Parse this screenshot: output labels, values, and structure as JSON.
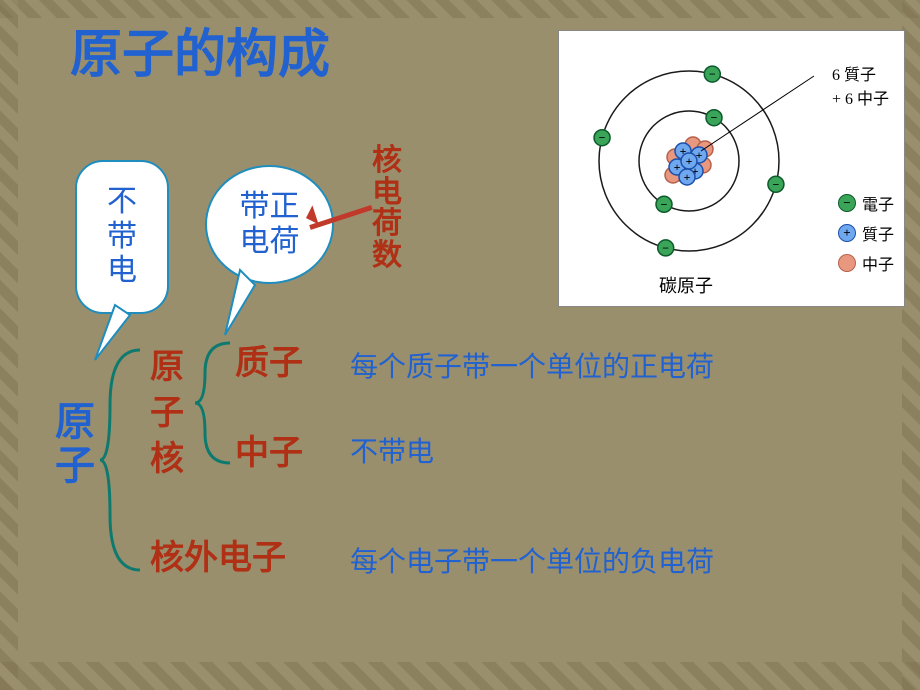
{
  "title": "原子的构成",
  "bubbles": {
    "neutral": "不\n带\n电",
    "positive": "带正\n电荷"
  },
  "nuclear_charge": "核电荷数",
  "tree": {
    "root": "原子",
    "nucleus": "原子核",
    "proton": "质子",
    "neutron": "中子",
    "electron": "核外电子"
  },
  "desc": {
    "proton": "每个质子带一个单位的正电荷",
    "neutron": "不带电",
    "electron": "每个电子带一个单位的负电荷"
  },
  "atom": {
    "caption": "碳原子",
    "top_label": "6 質子\n+ 6 中子",
    "legend": {
      "electron": "電子",
      "proton": "質子",
      "neutron": "中子"
    },
    "colors": {
      "electron_fill": "#3aa558",
      "electron_stroke": "#0c5a2c",
      "electron_sign": "−",
      "proton_fill": "#6fa8ef",
      "proton_stroke": "#1b4faa",
      "proton_sign": "+",
      "neutron_fill": "#e8987f",
      "neutron_stroke": "#b5604a",
      "orbit": "#1a1a1a"
    },
    "orbit_radii": [
      50,
      90
    ],
    "electrons_inner": 2,
    "electrons_outer": 4,
    "nucleus": {
      "protons": [
        [
          -6,
          -10
        ],
        [
          10,
          -6
        ],
        [
          -12,
          6
        ],
        [
          6,
          10
        ],
        [
          0,
          0
        ],
        [
          -2,
          16
        ]
      ],
      "neutrons": [
        [
          -14,
          -4
        ],
        [
          4,
          -16
        ],
        [
          14,
          4
        ],
        [
          -4,
          14
        ],
        [
          16,
          -12
        ],
        [
          -16,
          14
        ]
      ]
    }
  },
  "style": {
    "bubble_border": "#1f8dbd",
    "title_color": "#2162d0",
    "red": "#b03015",
    "brace": "#0e7a6e",
    "arrow": "#c0392b"
  }
}
